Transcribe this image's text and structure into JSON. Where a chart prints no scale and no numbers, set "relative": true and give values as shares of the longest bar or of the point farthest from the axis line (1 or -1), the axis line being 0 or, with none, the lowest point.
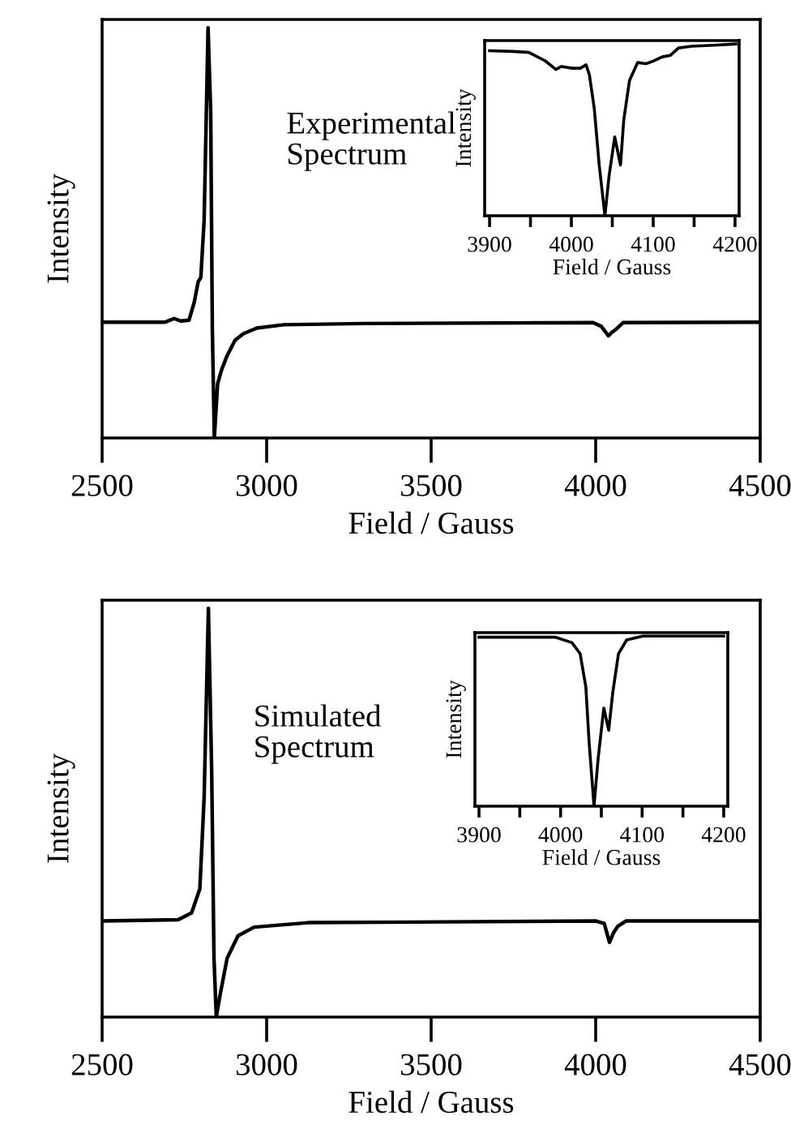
{
  "chart_data": [
    {
      "type": "line",
      "relative": true,
      "xlabel": "Field / Gauss",
      "ylabel": "Intensity",
      "annotations": [
        "Experimental\nSpectrum"
      ],
      "xlim": [
        2500,
        4500
      ],
      "xticks": [
        2500,
        3000,
        3500,
        4000,
        4500
      ],
      "grid": false,
      "marker": "none",
      "line_style": "solid",
      "series": [
        {
          "color": "#000000",
          "x": [
            2500,
            2690,
            2719,
            2739,
            2764,
            2780,
            2792,
            2800,
            2810,
            2822,
            2830,
            2835,
            2841,
            2851,
            2863,
            2879,
            2904,
            2929,
            2970,
            3052,
            3300,
            3992,
            4017,
            4039,
            4050,
            4062,
            4083,
            4500
          ],
          "values": [
            0.282,
            0.282,
            0.291,
            0.285,
            0.287,
            0.331,
            0.381,
            0.391,
            0.53,
            1.0,
            0.795,
            0.265,
            0.0,
            0.132,
            0.166,
            0.199,
            0.238,
            0.254,
            0.268,
            0.276,
            0.279,
            0.281,
            0.272,
            0.249,
            0.258,
            0.265,
            0.281,
            0.282
          ]
        }
      ]
    },
    {
      "type": "line",
      "relative": true,
      "xlabel": "Field / Gauss",
      "ylabel": "Intensity",
      "xlim": [
        3894,
        4205
      ],
      "xticks": [
        3900,
        {
          "value": 3950,
          "label": null
        },
        4000,
        {
          "value": 4050,
          "label": null
        },
        4100,
        {
          "value": 4150,
          "label": null
        },
        4200
      ],
      "grid": false,
      "marker": "none",
      "line_style": "solid",
      "series": [
        {
          "color": "#000000",
          "x": [
            3900,
            3928,
            3948,
            3968,
            3981,
            3988,
            4001,
            4011,
            4018,
            4022,
            4028,
            4034,
            4041,
            4046,
            4053,
            4060,
            4064,
            4071,
            4081,
            4091,
            4101,
            4111,
            4121,
            4131,
            4147,
            4174,
            4201
          ],
          "values": [
            0.961,
            0.957,
            0.951,
            0.902,
            0.852,
            0.869,
            0.859,
            0.859,
            0.879,
            0.82,
            0.623,
            0.295,
            0.0,
            0.23,
            0.459,
            0.295,
            0.557,
            0.787,
            0.892,
            0.885,
            0.902,
            0.925,
            0.934,
            0.977,
            0.987,
            0.993,
            1.0
          ]
        }
      ]
    },
    {
      "type": "line",
      "relative": true,
      "xlabel": "Field / Gauss",
      "ylabel": "Intensity",
      "annotations": [
        "Simulated\nSpectrum"
      ],
      "xlim": [
        2500,
        4500
      ],
      "xticks": [
        2500,
        3000,
        3500,
        4000,
        4500
      ],
      "grid": false,
      "marker": "none",
      "line_style": "solid",
      "series": [
        {
          "color": "#000000",
          "x": [
            2500,
            2731,
            2772,
            2797,
            2810,
            2823,
            2833,
            2840,
            2847,
            2858,
            2880,
            2913,
            2962,
            3127,
            4001,
            4026,
            4042,
            4054,
            4067,
            4092,
            4500
          ],
          "values": [
            0.235,
            0.238,
            0.255,
            0.314,
            0.536,
            1.0,
            0.601,
            0.144,
            0.0,
            0.052,
            0.144,
            0.199,
            0.22,
            0.231,
            0.235,
            0.229,
            0.183,
            0.206,
            0.222,
            0.235,
            0.235
          ]
        }
      ]
    },
    {
      "type": "line",
      "relative": true,
      "xlabel": "Field / Gauss",
      "ylabel": "Intensity",
      "xlim": [
        3895,
        4205
      ],
      "xticks": [
        3900,
        {
          "value": 3950,
          "label": null
        },
        4000,
        {
          "value": 4050,
          "label": null
        },
        4100,
        {
          "value": 4150,
          "label": null
        },
        4200
      ],
      "grid": false,
      "marker": "none",
      "line_style": "solid",
      "series": [
        {
          "color": "#000000",
          "x": [
            3900,
            3994,
            4014,
            4024,
            4031,
            4035,
            4041,
            4046,
            4053,
            4059,
            4064,
            4071,
            4081,
            4101,
            4200
          ],
          "values": [
            0.993,
            0.993,
            0.961,
            0.896,
            0.7,
            0.375,
            0.0,
            0.277,
            0.577,
            0.446,
            0.668,
            0.896,
            0.977,
            1.0,
            1.0
          ]
        }
      ]
    }
  ]
}
